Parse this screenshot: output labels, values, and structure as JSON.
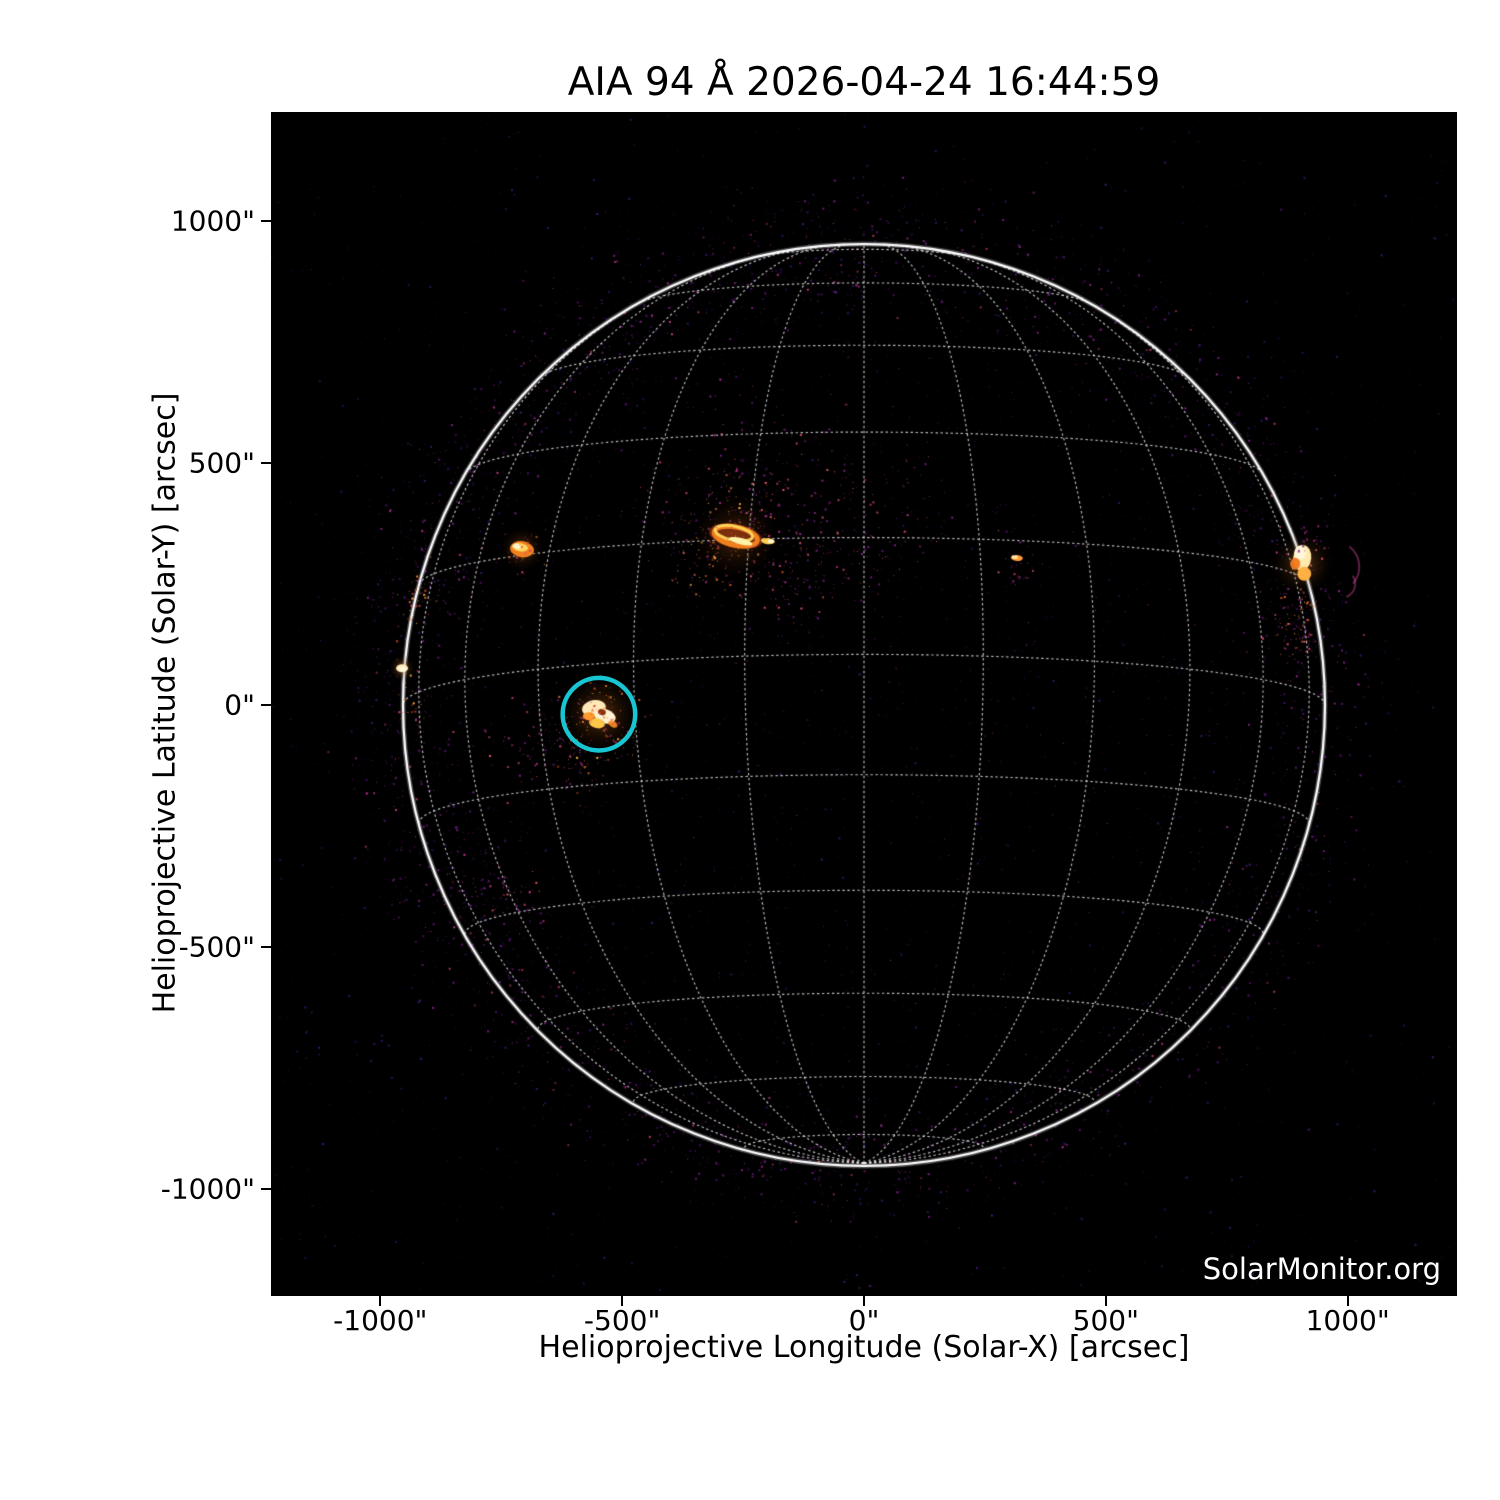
{
  "title": "AIA 94 Å 2026-04-24 16:44:59",
  "watermark": "SolarMonitor.org",
  "axes": {
    "x_label": "Helioprojective Longitude (Solar-X) [arcsec]",
    "y_label": "Helioprojective Latitude (Solar-Y) [arcsec]",
    "x_ticks": [
      {
        "value": -1000,
        "label": "-1000\""
      },
      {
        "value": -500,
        "label": "-500\""
      },
      {
        "value": 0,
        "label": "0\""
      },
      {
        "value": 500,
        "label": "500\""
      },
      {
        "value": 1000,
        "label": "1000\""
      }
    ],
    "y_ticks": [
      {
        "value": 1000,
        "label": "1000\""
      },
      {
        "value": 500,
        "label": "500\""
      },
      {
        "value": 0,
        "label": "0\""
      },
      {
        "value": -500,
        "label": "-500\""
      },
      {
        "value": -1000,
        "label": "-1000\""
      }
    ]
  },
  "chart_data": {
    "type": "heatmap",
    "instrument": "AIA",
    "wavelength_angstrom": 94,
    "observation_time": "2026-04-24 16:44:59",
    "x_range_arcsec": [
      -1228,
      1228
    ],
    "y_range_arcsec": [
      -1226,
      1226
    ],
    "solar_radius_arcsec": 953,
    "grid": {
      "spacing_deg": 15,
      "b0_deg": -6.3,
      "color": "#f6f6f6"
    },
    "background_color": "#000000",
    "annotation_circle": {
      "x_arcsec": -548,
      "y_arcsec": -19,
      "radius_arcsec": 75,
      "color": "#17c6d2"
    },
    "features": [
      {
        "name": "active-region-circled",
        "x_arcsec": -546,
        "y_arcsec": -19,
        "kind": "bright-core"
      },
      {
        "name": "active-region-north-center",
        "x_arcsec": -265,
        "y_arcsec": 351,
        "kind": "bright-arcade"
      },
      {
        "name": "active-region-northeast",
        "x_arcsec": -707,
        "y_arcsec": 322,
        "kind": "compact-bright"
      },
      {
        "name": "active-region-west-limb",
        "x_arcsec": 906,
        "y_arcsec": 296,
        "kind": "bright-core"
      },
      {
        "name": "brightening-northwest",
        "x_arcsec": 316,
        "y_arcsec": 304,
        "kind": "small-dot"
      },
      {
        "name": "east-limb-activity",
        "x_arcsec": -955,
        "y_arcsec": 76,
        "kind": "limb-speckles"
      },
      {
        "name": "diffuse-southeast-patch",
        "x_arcsec": -767,
        "y_arcsec": -389,
        "kind": "faint-speckles"
      }
    ]
  },
  "colors": {
    "page_bg": "#ffffff",
    "text": "#000000",
    "limb": "#ffffff",
    "watermark_text": "#ffffff",
    "annotation": "#17c6d2"
  }
}
